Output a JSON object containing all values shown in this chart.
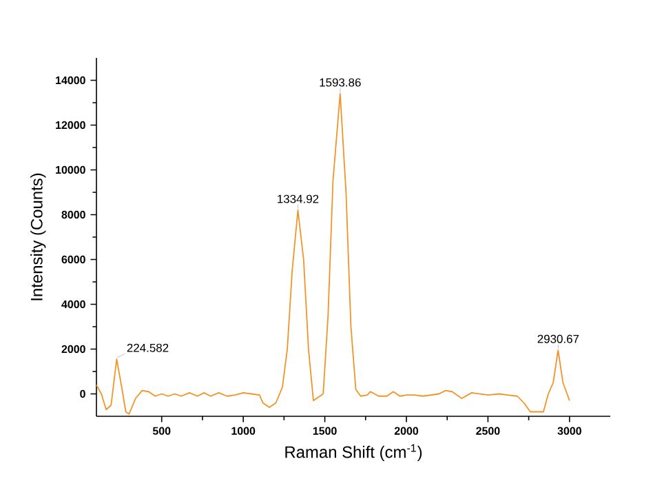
{
  "chart_data": {
    "type": "line",
    "xlabel": "Raman Shift (cm$^{-1}$)",
    "ylabel": "Intensity (Counts)",
    "xlim": [
      100,
      3250
    ],
    "ylim": [
      -1000,
      15000
    ],
    "xticks": [
      500,
      1000,
      1500,
      2000,
      2500,
      3000
    ],
    "yticks": [
      0,
      2000,
      4000,
      6000,
      8000,
      10000,
      12000,
      14000
    ],
    "grid": false,
    "marker": "none",
    "line_style": "solid",
    "series": [
      {
        "color": "#f39325",
        "x": [
          100,
          130,
          160,
          190,
          224,
          255,
          280,
          300,
          340,
          380,
          420,
          460,
          500,
          540,
          580,
          620,
          670,
          720,
          760,
          800,
          850,
          900,
          950,
          1000,
          1050,
          1100,
          1120,
          1160,
          1200,
          1240,
          1270,
          1300,
          1335,
          1370,
          1400,
          1430,
          1460,
          1490,
          1520,
          1550,
          1594,
          1630,
          1660,
          1690,
          1720,
          1760,
          1780,
          1830,
          1880,
          1920,
          1960,
          2000,
          2050,
          2100,
          2150,
          2200,
          2240,
          2280,
          2340,
          2400,
          2450,
          2500,
          2570,
          2620,
          2680,
          2720,
          2760,
          2800,
          2840,
          2870,
          2900,
          2930,
          2960,
          3000
        ],
        "values": [
          400,
          0,
          -700,
          -500,
          1550,
          300,
          -800,
          -900,
          -200,
          150,
          100,
          -100,
          0,
          -100,
          0,
          -100,
          50,
          -100,
          50,
          -100,
          50,
          -100,
          -50,
          50,
          0,
          -50,
          -400,
          -600,
          -400,
          300,
          2000,
          5500,
          8200,
          6000,
          2000,
          -300,
          null,
          0,
          3500,
          9500,
          13400,
          9000,
          3000,
          200,
          -100,
          -50,
          100,
          -100,
          -100,
          100,
          -100,
          -50,
          -50,
          -100,
          -50,
          0,
          150,
          100,
          -200,
          50,
          0,
          -50,
          0,
          -50,
          -100,
          -400,
          -800,
          null,
          -800,
          0,
          500,
          1950,
          500,
          -300
        ]
      }
    ],
    "annotations": [
      {
        "text": "224.582",
        "x": 224.582,
        "y": 1550
      },
      {
        "text": "1334.92",
        "x": 1334.92,
        "y": 8200
      },
      {
        "text": "1593.86",
        "x": 1593.86,
        "y": 13400
      },
      {
        "text": "2930.67",
        "x": 2930.67,
        "y": 1950
      }
    ]
  }
}
